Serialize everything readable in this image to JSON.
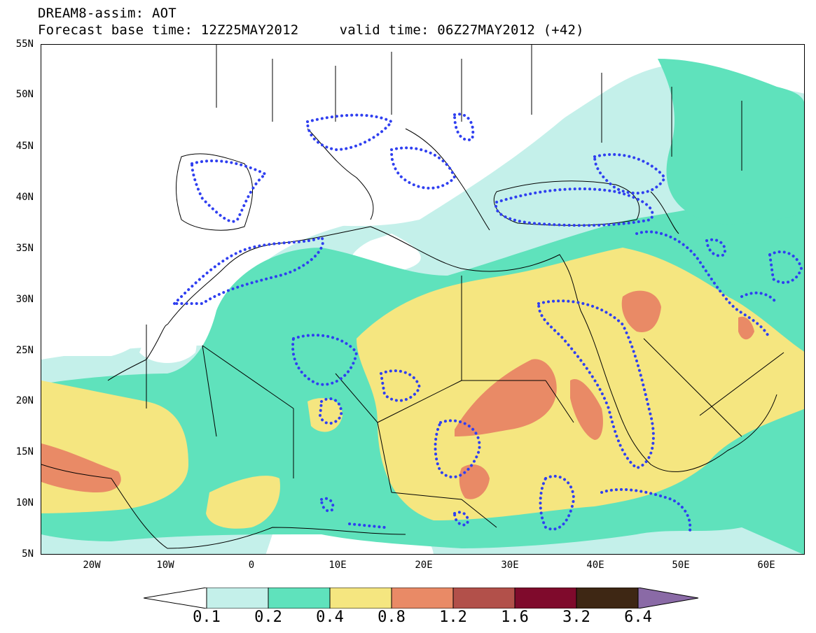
{
  "title": {
    "line1": "DREAM8-assim: AOT",
    "line2": "Forecast base time: 12Z25MAY2012     valid time: 06Z27MAY2012 (+42)"
  },
  "axes": {
    "lat_labels": [
      "55N",
      "50N",
      "45N",
      "40N",
      "35N",
      "30N",
      "25N",
      "20N",
      "15N",
      "10N",
      "5N"
    ],
    "lon_labels": [
      "20W",
      "10W",
      "0",
      "10E",
      "20E",
      "30E",
      "40E",
      "50E",
      "60E"
    ]
  },
  "colorbar": {
    "levels": [
      "0.1",
      "0.2",
      "0.4",
      "0.8",
      "1.2",
      "1.6",
      "3.2",
      "6.4"
    ],
    "colors": [
      "#ffffff",
      "#c4f0ea",
      "#5fe2bc",
      "#f5e680",
      "#e98a66",
      "#b2504a",
      "#7f0a2c",
      "#3e2714",
      "#8a6aa6"
    ]
  },
  "map": {
    "extent": {
      "lon_min": -25,
      "lon_max": 65,
      "lat_min": 5,
      "lat_max": 55
    },
    "contour_colors": {
      "c01": "#c4f0ea",
      "c02": "#5fe2bc",
      "c04": "#f5e680",
      "c08": "#e98a66",
      "dotted": "#2f3ff0",
      "coast": "#000000"
    }
  }
}
